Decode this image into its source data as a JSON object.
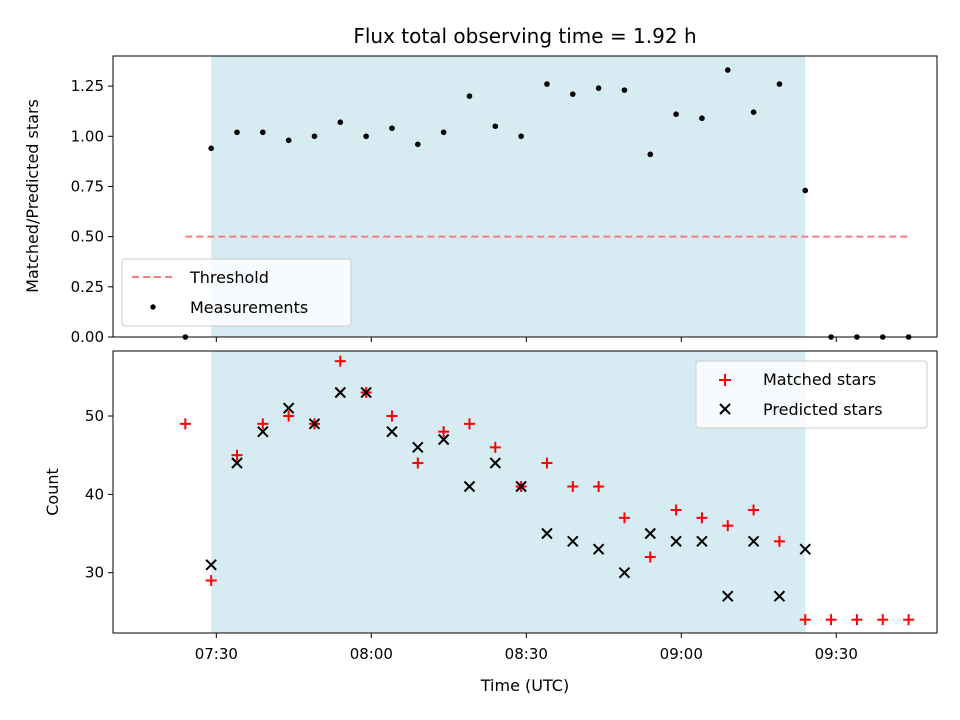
{
  "chart_data": [
    {
      "type": "scatter",
      "title": "Flux total observing time = 1.92 h",
      "xlabel": "",
      "ylabel": "Matched/Predicted stars",
      "ylim": [
        0,
        1.4
      ],
      "yticks": [
        "0.00",
        "0.25",
        "0.50",
        "0.75",
        "1.00",
        "1.25"
      ],
      "highlight_span": {
        "start": "07:29",
        "end": "09:24",
        "color": "#add8e6"
      },
      "threshold": {
        "name": "Threshold",
        "y": 0.5,
        "x_start": "07:24",
        "x_end": "09:44",
        "color": "#f08080"
      },
      "series": [
        {
          "name": "Measurements",
          "color": "#000000",
          "marker": "dot",
          "x": [
            "07:24",
            "07:29",
            "07:34",
            "07:39",
            "07:44",
            "07:49",
            "07:54",
            "07:59",
            "08:04",
            "08:09",
            "08:14",
            "08:19",
            "08:24",
            "08:29",
            "08:34",
            "08:39",
            "08:44",
            "08:49",
            "08:54",
            "08:59",
            "09:04",
            "09:09",
            "09:14",
            "09:19",
            "09:24",
            "09:29",
            "09:34",
            "09:39",
            "09:44"
          ],
          "y": [
            0.0,
            0.94,
            1.02,
            1.02,
            0.98,
            1.0,
            1.07,
            1.0,
            1.04,
            0.96,
            1.02,
            1.2,
            1.05,
            1.0,
            1.26,
            1.21,
            1.24,
            1.23,
            0.91,
            1.11,
            1.09,
            1.33,
            1.12,
            1.26,
            0.73,
            0.0,
            0.0,
            0.0,
            0.0
          ]
        }
      ],
      "legend": {
        "position": "lower-left",
        "entries": [
          "Threshold",
          "Measurements"
        ]
      }
    },
    {
      "type": "scatter",
      "xlabel": "Time (UTC)",
      "ylabel": "Count",
      "ylim": [
        22.3,
        58.3
      ],
      "xticks": [
        "07:30",
        "08:00",
        "08:30",
        "09:00",
        "09:30"
      ],
      "yticks": [
        "30",
        "40",
        "50"
      ],
      "highlight_span": {
        "start": "07:29",
        "end": "09:24",
        "color": "#add8e6"
      },
      "series": [
        {
          "name": "Matched stars",
          "color": "#ff0000",
          "marker": "plus",
          "x": [
            "07:24",
            "07:29",
            "07:34",
            "07:39",
            "07:44",
            "07:49",
            "07:54",
            "07:59",
            "08:04",
            "08:09",
            "08:14",
            "08:19",
            "08:24",
            "08:29",
            "08:34",
            "08:39",
            "08:44",
            "08:49",
            "08:54",
            "08:59",
            "09:04",
            "09:09",
            "09:14",
            "09:19",
            "09:24",
            "09:29",
            "09:34",
            "09:39",
            "09:44"
          ],
          "y": [
            49,
            29,
            45,
            49,
            50,
            49,
            57,
            53,
            50,
            44,
            48,
            49,
            46,
            41,
            44,
            41,
            41,
            37,
            32,
            38,
            37,
            36,
            38,
            34,
            24,
            24,
            24,
            24,
            24
          ]
        },
        {
          "name": "Predicted stars",
          "color": "#000000",
          "marker": "x",
          "x": [
            "07:29",
            "07:34",
            "07:39",
            "07:44",
            "07:49",
            "07:54",
            "07:59",
            "08:04",
            "08:09",
            "08:14",
            "08:19",
            "08:24",
            "08:29",
            "08:34",
            "08:39",
            "08:44",
            "08:49",
            "08:54",
            "08:59",
            "09:04",
            "09:09",
            "09:14",
            "09:19",
            "09:24"
          ],
          "y": [
            31,
            44,
            48,
            51,
            49,
            53,
            53,
            48,
            46,
            47,
            41,
            44,
            41,
            35,
            34,
            33,
            30,
            35,
            34,
            34,
            27,
            34,
            27,
            33
          ]
        }
      ],
      "legend": {
        "position": "top-right",
        "entries": [
          "Matched stars",
          "Predicted stars"
        ]
      }
    }
  ]
}
